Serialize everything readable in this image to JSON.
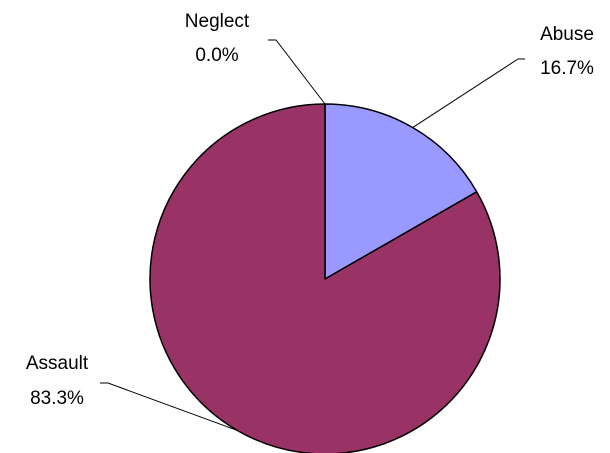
{
  "chart_data": {
    "type": "pie",
    "slices": [
      {
        "label": "Neglect",
        "value": 0.0,
        "value_label": "0.0%",
        "color": "#ffffcc"
      },
      {
        "label": "Abuse",
        "value": 16.7,
        "value_label": "16.7%",
        "color": "#9999ff"
      },
      {
        "label": "Assault",
        "value": 83.3,
        "value_label": "83.3%",
        "color": "#993366"
      }
    ],
    "start_angle": "12 o'clock",
    "direction": "clockwise",
    "legend": "none"
  }
}
